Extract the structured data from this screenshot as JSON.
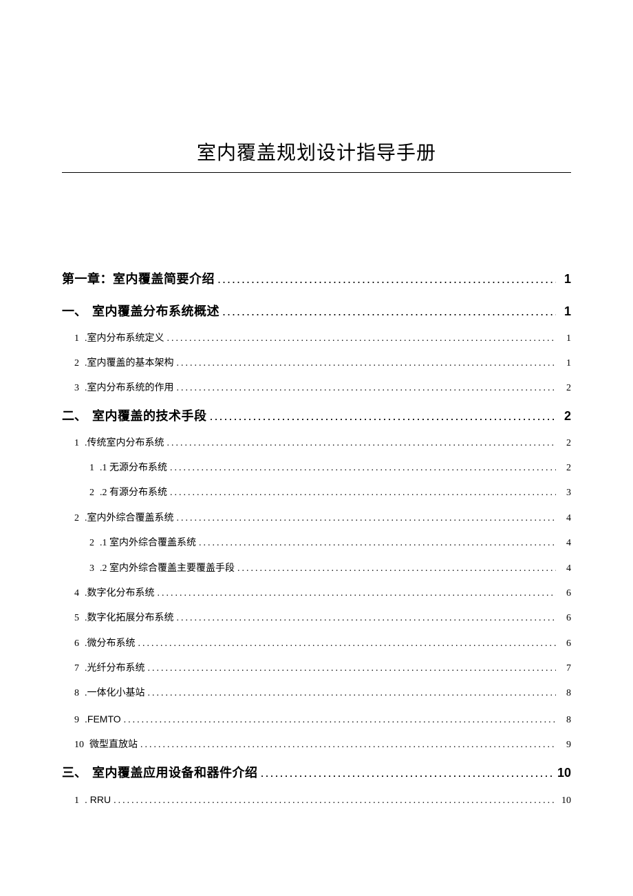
{
  "doc_title": "室内覆盖规划设计指导手册",
  "colors": {
    "background": "#ffffff",
    "text": "#000000",
    "rule": "#000000"
  },
  "typography": {
    "title_fontsize": 28,
    "chapter_fontsize": 18,
    "section_fontsize": 18,
    "sub_fontsize": 14,
    "title_family": "Microsoft YaHei",
    "body_family": "SimSun"
  },
  "toc": [
    {
      "level": "chapter",
      "num": "",
      "label": "第一章：室内覆盖简要介绍",
      "page": "1"
    },
    {
      "level": "section",
      "num": "一、",
      "label": "室内覆盖分布系统概述",
      "page": "1"
    },
    {
      "level": "sub",
      "num": "1",
      "label": ".室内分布系统定义",
      "page": "1"
    },
    {
      "level": "sub",
      "num": "2",
      "label": ".室内覆盖的基本架构",
      "page": "1"
    },
    {
      "level": "sub",
      "num": "3",
      "label": ".室内分布系统的作用",
      "page": "2"
    },
    {
      "level": "section",
      "num": "二、",
      "label": "室内覆盖的技术手段",
      "page": "2"
    },
    {
      "level": "sub",
      "num": "1",
      "label": ".传统室内分布系统",
      "page": "2"
    },
    {
      "level": "subsub",
      "num": "1",
      "label": ".1 无源分布系统",
      "page": "2"
    },
    {
      "level": "subsub",
      "num": "2",
      "label": ".2 有源分布系统",
      "page": "3"
    },
    {
      "level": "sub",
      "num": "2",
      "label": ".室内外综合覆盖系统",
      "page": "4"
    },
    {
      "level": "subsub",
      "num": "2",
      "label": ".1 室内外综合覆盖系统",
      "page": "4"
    },
    {
      "level": "subsub",
      "num": "3",
      "label": ".2 室内外综合覆盖主要覆盖手段",
      "page": "4"
    },
    {
      "level": "sub",
      "num": "4",
      "label": ".数字化分布系统",
      "page": "6"
    },
    {
      "level": "sub",
      "num": "5",
      "label": ".数字化拓展分布系统",
      "page": "6"
    },
    {
      "level": "sub",
      "num": "6",
      "label": ".微分布系统",
      "page": "6"
    },
    {
      "level": "sub",
      "num": "7",
      "label": ".光纤分布系统",
      "page": "7"
    },
    {
      "level": "sub",
      "num": "8",
      "label": ".一体化小基站",
      "page": "8"
    },
    {
      "level": "sub",
      "num": "9",
      "label": ".FEMTO",
      "page": "8",
      "smallcaps": true
    },
    {
      "level": "sub",
      "num": "10",
      "label": "微型直放站",
      "page": "9"
    },
    {
      "level": "section",
      "num": "三、",
      "label": "室内覆盖应用设备和器件介绍",
      "page": "10"
    },
    {
      "level": "sub",
      "num": "1",
      "label": ". RRU",
      "page": "10",
      "smallcaps": true
    }
  ]
}
